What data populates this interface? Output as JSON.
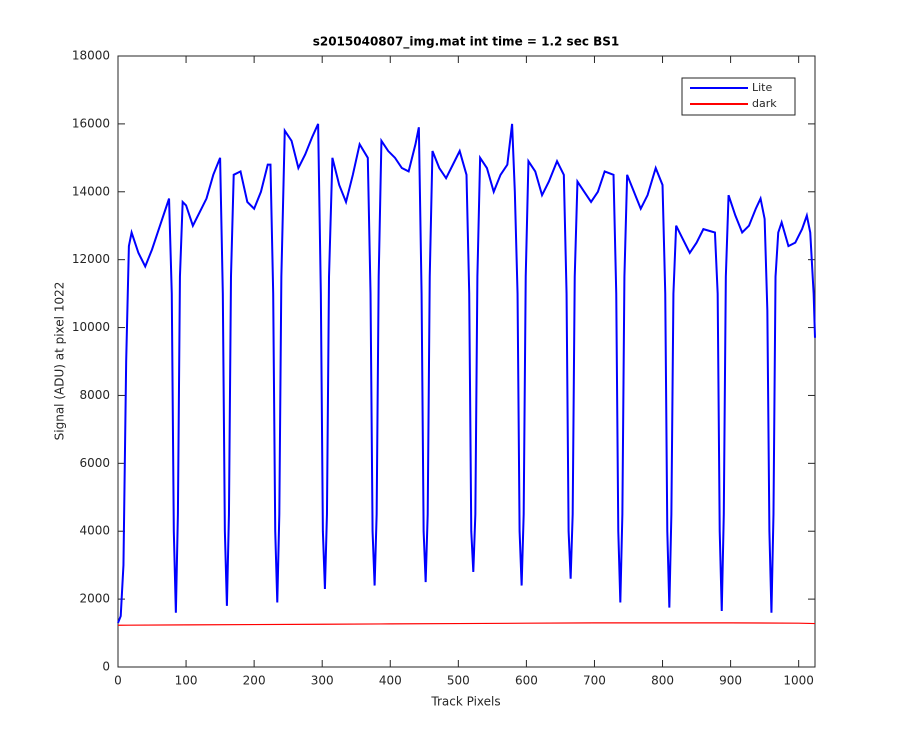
{
  "chart_data": {
    "type": "line",
    "title": "s2015040807_img.mat int time = 1.2 sec   BS1",
    "xlabel": "Track Pixels",
    "ylabel": "Signal (ADU) at pixel 1022",
    "xlim": [
      0,
      1024
    ],
    "xticks": [
      0,
      100,
      200,
      300,
      400,
      500,
      600,
      700,
      800,
      900,
      1000
    ],
    "ylim": [
      0,
      18000
    ],
    "yticks": [
      0,
      2000,
      4000,
      6000,
      8000,
      10000,
      12000,
      14000,
      16000,
      18000
    ],
    "grid": false,
    "legend": "upper right",
    "series": [
      {
        "name": "Lite",
        "color": "#0000ff",
        "x": [
          0,
          4,
          8,
          12,
          16,
          20,
          30,
          40,
          50,
          60,
          70,
          75,
          79,
          82,
          85,
          88,
          91,
          95,
          100,
          110,
          120,
          130,
          140,
          150,
          154,
          157,
          160,
          163,
          166,
          170,
          180,
          190,
          200,
          210,
          220,
          224,
          228,
          231,
          234,
          237,
          240,
          245,
          255,
          265,
          275,
          285,
          294,
          298,
          301,
          304,
          307,
          310,
          315,
          325,
          335,
          345,
          355,
          367,
          371,
          374,
          377,
          380,
          383,
          387,
          397,
          407,
          417,
          427,
          437,
          442,
          446,
          449,
          452,
          455,
          458,
          462,
          472,
          482,
          492,
          502,
          512,
          516,
          519,
          522,
          525,
          528,
          532,
          542,
          552,
          562,
          572,
          579,
          583,
          587,
          590,
          593,
          596,
          599,
          603,
          613,
          623,
          633,
          645,
          655,
          659,
          662,
          665,
          668,
          671,
          675,
          685,
          695,
          705,
          715,
          728,
          732,
          735,
          738,
          741,
          744,
          748,
          758,
          768,
          778,
          790,
          800,
          804,
          807,
          810,
          813,
          816,
          820,
          830,
          840,
          850,
          860,
          877,
          881,
          884,
          887,
          890,
          893,
          897,
          907,
          917,
          927,
          937,
          944,
          950,
          954,
          957,
          960,
          963,
          966,
          970,
          975,
          985,
          995,
          1005,
          1012,
          1017,
          1022,
          1024
        ],
        "values": [
          1300,
          1500,
          3000,
          9000,
          12400,
          12800,
          12200,
          11800,
          12300,
          12900,
          13500,
          13800,
          11000,
          4000,
          1600,
          4500,
          11500,
          13700,
          13600,
          13000,
          13400,
          13800,
          14500,
          15000,
          11000,
          4000,
          1800,
          4500,
          11500,
          14500,
          14600,
          13700,
          13500,
          14000,
          14800,
          14800,
          11000,
          4000,
          1900,
          4500,
          11500,
          15800,
          15500,
          14700,
          15100,
          15600,
          16000,
          11000,
          4000,
          2300,
          4500,
          11500,
          15000,
          14200,
          13700,
          14500,
          15400,
          15000,
          11000,
          4000,
          2400,
          4500,
          11500,
          15500,
          15200,
          15000,
          14700,
          14600,
          15400,
          15900,
          11000,
          4000,
          2500,
          4500,
          11500,
          15200,
          14700,
          14400,
          14800,
          15200,
          14500,
          11000,
          4000,
          2800,
          4500,
          11500,
          15000,
          14700,
          14000,
          14500,
          14800,
          16000,
          14000,
          11000,
          4000,
          2400,
          4500,
          11500,
          14900,
          14600,
          13900,
          14300,
          14900,
          14500,
          11000,
          4000,
          2600,
          4500,
          11500,
          14300,
          14000,
          13700,
          14000,
          14600,
          14500,
          11000,
          4000,
          1900,
          4500,
          11500,
          14500,
          14000,
          13500,
          13900,
          14700,
          14200,
          11000,
          4000,
          1750,
          4500,
          11000,
          13000,
          12600,
          12200,
          12500,
          12900,
          12800,
          11000,
          4000,
          1650,
          4500,
          11500,
          13900,
          13300,
          12800,
          13000,
          13500,
          13800,
          13200,
          10500,
          4000,
          1600,
          4500,
          11500,
          12800,
          13100,
          12400,
          12500,
          12900,
          13300,
          12800,
          11000,
          9700
        ]
      },
      {
        "name": "dark",
        "color": "#ff0000",
        "x": [
          0,
          100,
          200,
          300,
          400,
          500,
          600,
          700,
          800,
          900,
          1000,
          1024
        ],
        "values": [
          1230,
          1240,
          1250,
          1260,
          1270,
          1280,
          1290,
          1300,
          1300,
          1300,
          1290,
          1280
        ]
      }
    ]
  }
}
